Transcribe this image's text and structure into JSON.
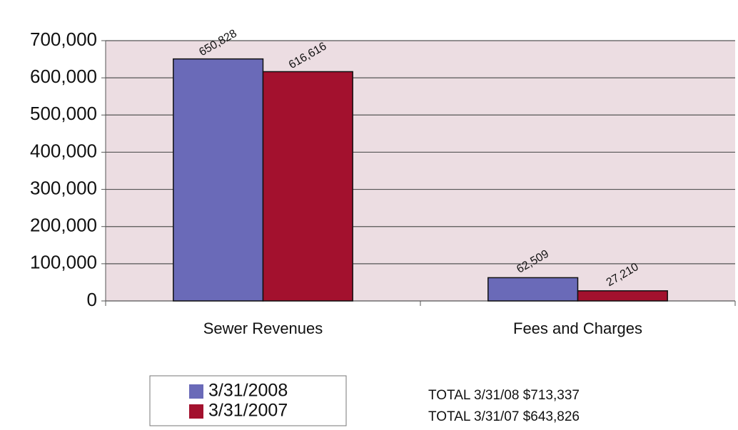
{
  "chart_data": {
    "type": "bar",
    "categories": [
      "Sewer Revenues",
      "Fees and Charges"
    ],
    "series": [
      {
        "name": "3/31/2008",
        "color": "#6a6ab8",
        "values": [
          650828,
          62509
        ],
        "value_labels": [
          "650,828",
          "62,509"
        ]
      },
      {
        "name": "3/31/2007",
        "color": "#a3112e",
        "values": [
          616616,
          27210
        ],
        "value_labels": [
          "616,616",
          "27,210"
        ]
      }
    ],
    "ylim": [
      0,
      700000
    ],
    "yticks": [
      0,
      {
        "value": 100000,
        "label": "100,000"
      },
      {
        "value": 200000,
        "label": "200,000"
      },
      {
        "value": 300000,
        "label": "300,000"
      },
      {
        "value": 400000,
        "label": "400,000"
      },
      {
        "value": 500000,
        "label": "500,000"
      },
      {
        "value": 600000,
        "label": "600,000"
      },
      {
        "value": 700000,
        "label": "700,000"
      }
    ],
    "grid": true,
    "annotations": [
      "TOTAL 3/31/08 $713,337",
      "TOTAL 3/31/07 $643,826"
    ]
  }
}
